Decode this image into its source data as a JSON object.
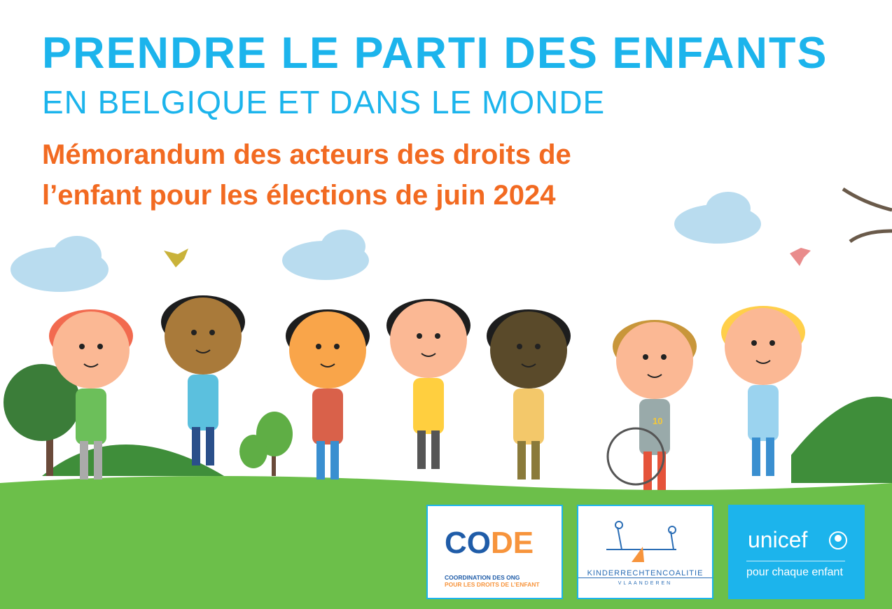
{
  "title": "PRENDRE LE PARTI DES ENFANTS",
  "subtitle": "EN BELGIQUE ET DANS LE MONDE",
  "memo_line1": "Mémorandum des acteurs des droits de",
  "memo_line2": "l’enfant pour les élections de juin 2024",
  "colors": {
    "title": "#1cb4ec",
    "memo": "#f26a21",
    "grass": "#6cbf4a"
  },
  "logos": {
    "code": {
      "co": "CO",
      "de": "DE",
      "line1": "COORDINATION DES ONG",
      "line2": "POUR LES DROITS DE L’ENFANT"
    },
    "kinderrechten": {
      "name": "KINDERRECHTENCOALITIE",
      "region": "VLAANDEREN"
    },
    "unicef": {
      "word": "unicef",
      "tagline": "pour chaque enfant"
    }
  },
  "illustration": {
    "shirt_number": "10"
  }
}
